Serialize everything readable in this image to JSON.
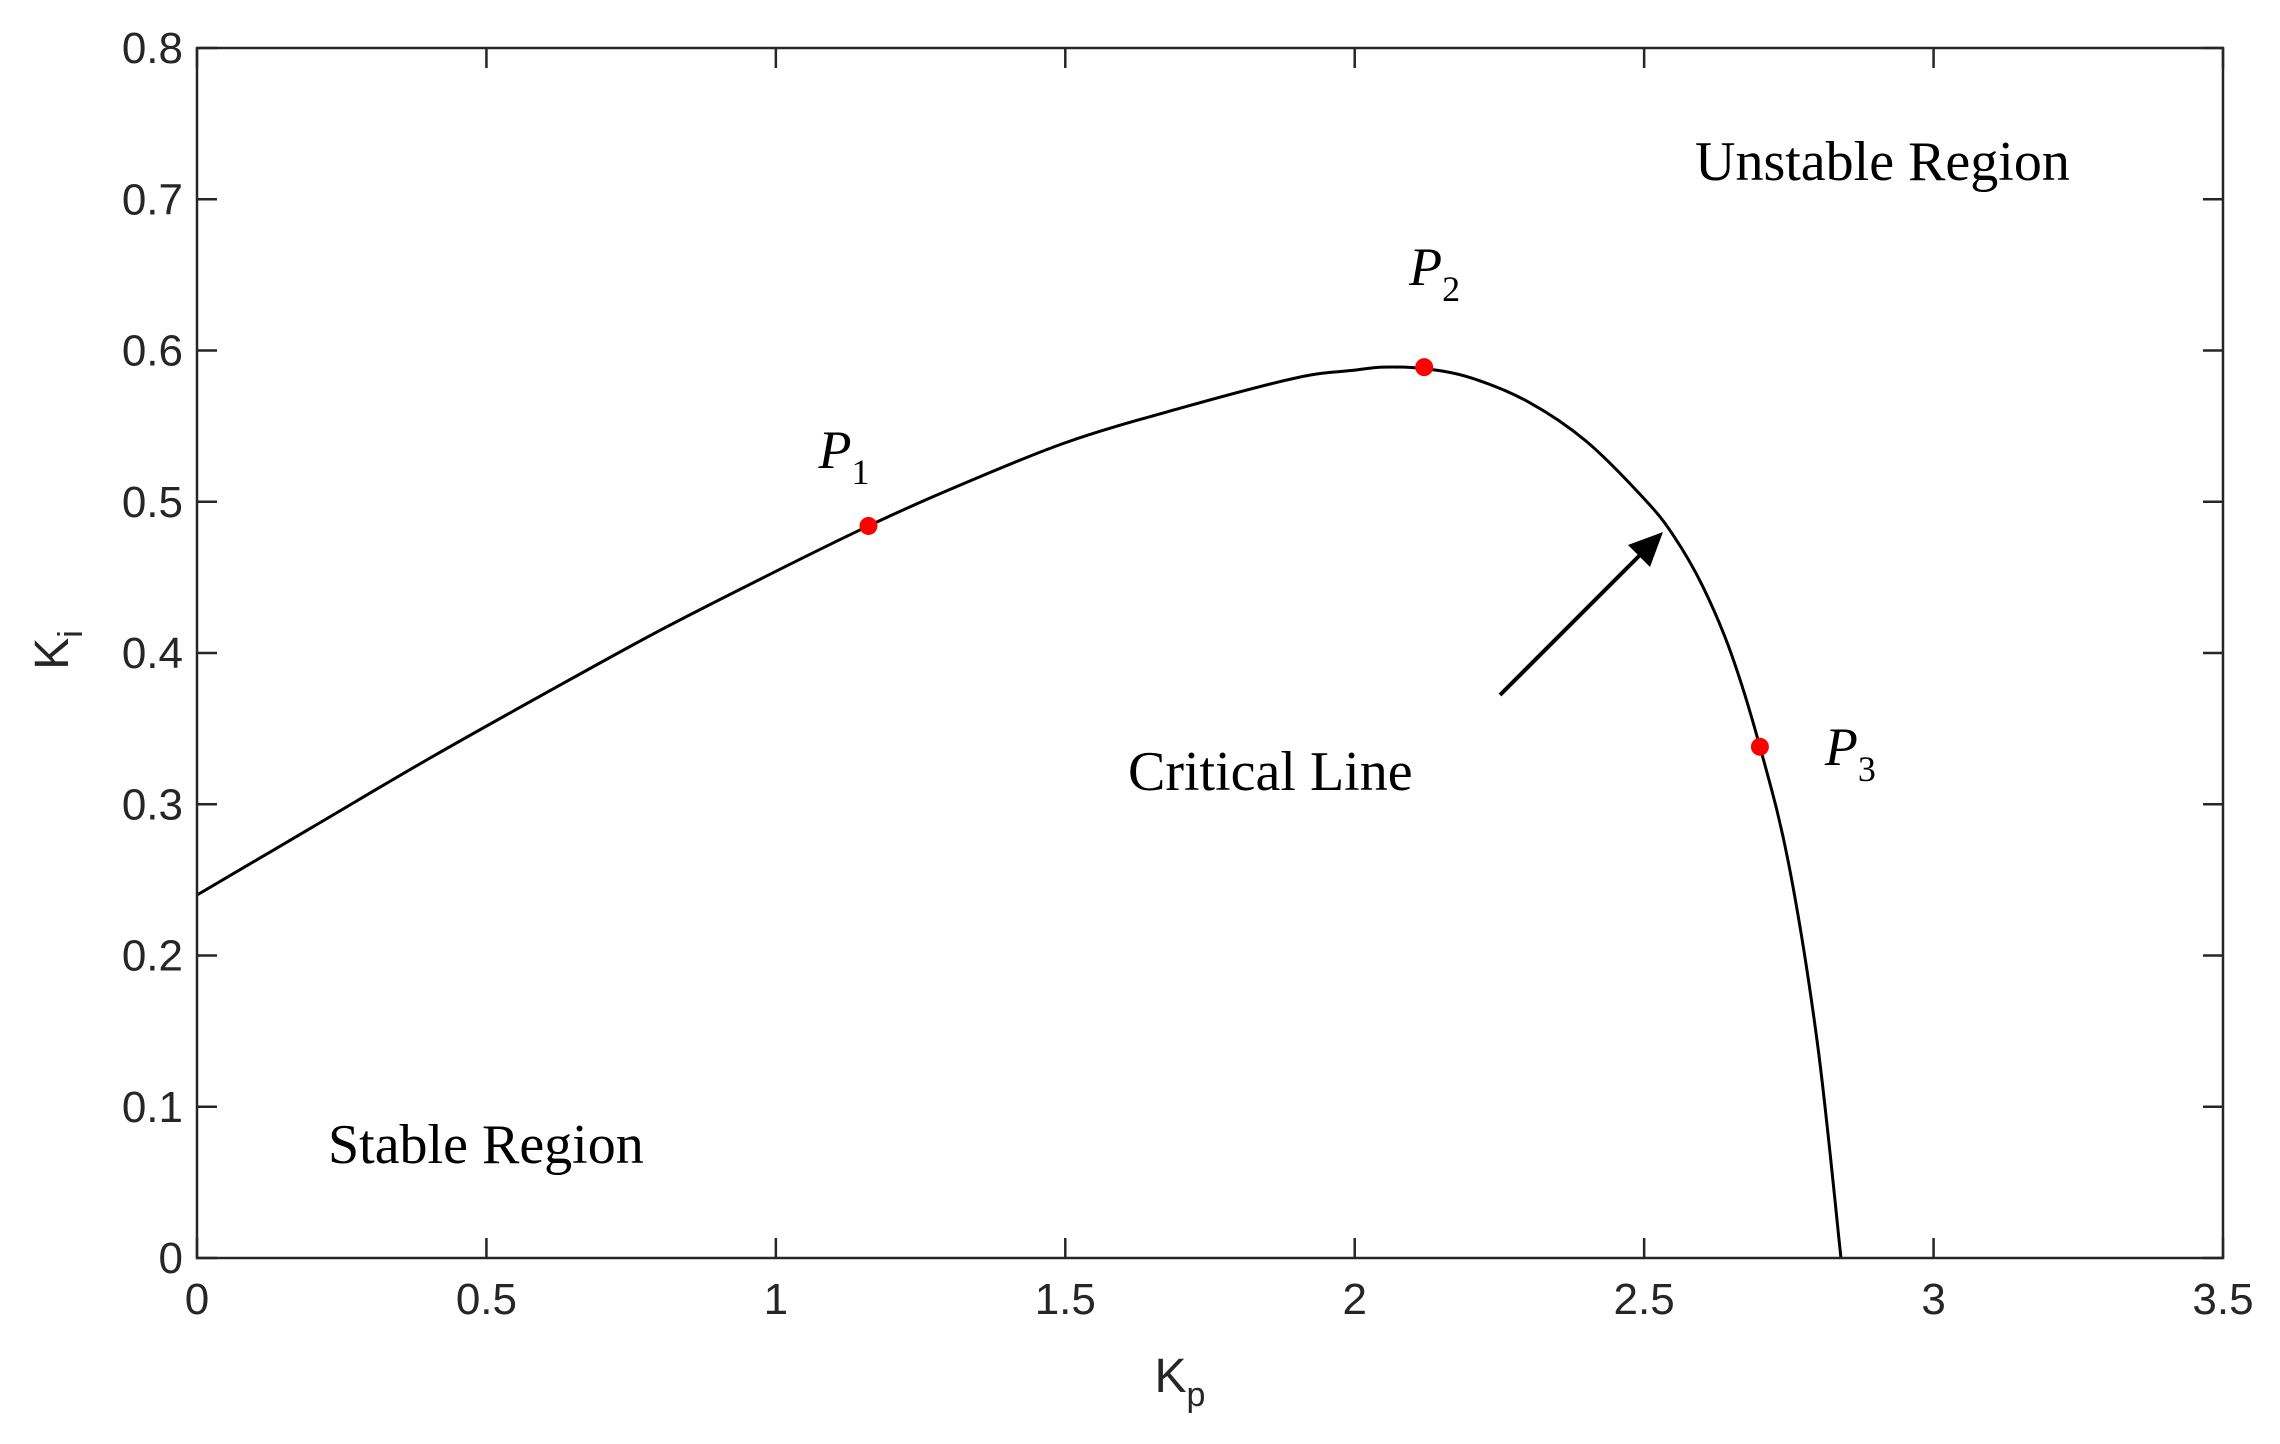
{
  "chart_data": {
    "type": "line",
    "title": "",
    "xlabel": {
      "main": "K",
      "sub": "p"
    },
    "ylabel": {
      "main": "K",
      "sub": "i"
    },
    "xlim": [
      0,
      3.5
    ],
    "ylim": [
      0,
      0.8
    ],
    "xticks": [
      "0",
      "0.5",
      "1",
      "1.5",
      "2",
      "2.5",
      "3",
      "3.5"
    ],
    "yticks": [
      "0",
      "0.1",
      "0.2",
      "0.3",
      "0.4",
      "0.5",
      "0.6",
      "0.7",
      "0.8"
    ],
    "grid": false,
    "series": [
      {
        "color": "#000000",
        "x": [
          0,
          0.2,
          0.4,
          0.6,
          0.8,
          1.0,
          1.16,
          1.3,
          1.5,
          1.7,
          1.9,
          2.0,
          2.05,
          2.12,
          2.2,
          2.3,
          2.4,
          2.5,
          2.55,
          2.6,
          2.65,
          2.7,
          2.75,
          2.8,
          2.84
        ],
        "y": [
          0.24,
          0.285,
          0.33,
          0.373,
          0.415,
          0.454,
          0.484,
          0.508,
          0.539,
          0.562,
          0.582,
          0.587,
          0.589,
          0.588,
          0.582,
          0.566,
          0.54,
          0.502,
          0.478,
          0.445,
          0.4,
          0.338,
          0.26,
          0.14,
          0.0
        ]
      }
    ],
    "points": [
      {
        "label": "P",
        "sub": "1",
        "x": 1.16,
        "y": 0.484,
        "color": "#ff0000"
      },
      {
        "label": "P",
        "sub": "2",
        "x": 2.12,
        "y": 0.589,
        "color": "#ff0000"
      },
      {
        "label": "P",
        "sub": "3",
        "x": 2.7,
        "y": 0.338,
        "color": "#ff0000"
      }
    ],
    "annotations": {
      "unstable": "Unstable Region",
      "stable": "Stable Region",
      "critical": "Critical Line"
    }
  }
}
